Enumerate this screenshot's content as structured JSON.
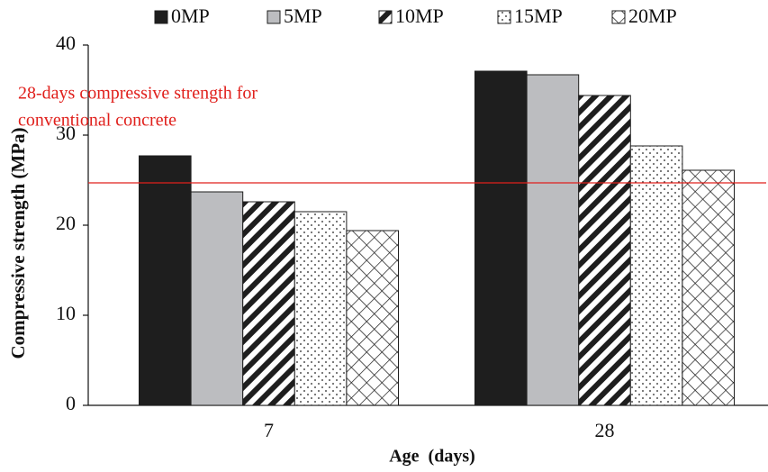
{
  "chart_data": {
    "type": "bar",
    "categories": [
      "7",
      "28"
    ],
    "x_label": "Age  (days)",
    "y_label": "Compressive strength (MPa)",
    "ylim": [
      0,
      40
    ],
    "yticks": [
      0,
      10,
      20,
      30,
      40
    ],
    "series": [
      {
        "name": "0MP",
        "color": "#1e1e1e",
        "pattern": "solid",
        "values": [
          27.7,
          37.1
        ]
      },
      {
        "name": "5MP",
        "color": "#bcbdc0",
        "pattern": "solid",
        "values": [
          23.7,
          36.7
        ]
      },
      {
        "name": "10MP",
        "color": "#1e1e1e",
        "pattern": "diagonal",
        "values": [
          22.6,
          34.4
        ]
      },
      {
        "name": "15MP",
        "color": "#1e1e1e",
        "pattern": "dots",
        "values": [
          21.5,
          28.8
        ]
      },
      {
        "name": "20MP",
        "color": "#1e1e1e",
        "pattern": "crosshatch",
        "values": [
          19.4,
          26.1
        ]
      }
    ],
    "reference_line": {
      "value": 24.7,
      "color": "#e0201c",
      "label_lines": [
        "28-days compressive strength for",
        "conventional concrete"
      ]
    },
    "legend": "top"
  }
}
